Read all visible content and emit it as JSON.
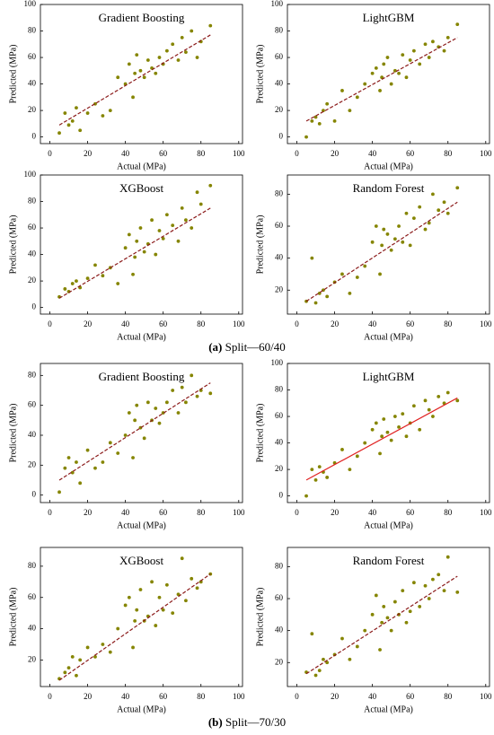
{
  "chart_data": [
    {
      "type": "scatter",
      "title": "Gradient Boosting",
      "x_label": "Actual (MPa)",
      "y_label": "Predicted (MPa)",
      "xlim": [
        -5,
        102
      ],
      "ylim": [
        -5,
        100
      ],
      "xticks": [
        0,
        20,
        40,
        60,
        80,
        100
      ],
      "yticks": [
        0,
        20,
        40,
        60,
        80,
        100
      ],
      "series": [
        {
          "color": "#858500",
          "x": [
            5,
            8,
            10,
            12,
            14,
            16,
            20,
            24,
            28,
            32,
            36,
            40,
            42,
            44,
            45,
            46,
            48,
            50,
            52,
            54,
            56,
            58,
            60,
            62,
            65,
            68,
            70,
            72,
            75,
            78,
            80,
            85
          ],
          "values": [
            3,
            18,
            9,
            12,
            22,
            5,
            18,
            25,
            16,
            20,
            45,
            40,
            55,
            30,
            48,
            62,
            50,
            45,
            58,
            52,
            48,
            60,
            55,
            65,
            70,
            58,
            75,
            64,
            80,
            60,
            72,
            84
          ]
        }
      ],
      "fit_line": {
        "color": "#8b1a1a",
        "style": "dashed",
        "x": [
          5,
          85
        ],
        "values": [
          9,
          77
        ]
      }
    },
    {
      "type": "scatter",
      "title": "LightGBM",
      "x_label": "Actual (MPa)",
      "y_label": "Predicted (MPa)",
      "xlim": [
        -5,
        102
      ],
      "ylim": [
        -5,
        100
      ],
      "xticks": [
        0,
        20,
        40,
        60,
        80,
        100
      ],
      "yticks": [
        0,
        20,
        40,
        60,
        80,
        100
      ],
      "series": [
        {
          "color": "#858500",
          "x": [
            5,
            8,
            10,
            12,
            14,
            16,
            20,
            24,
            28,
            32,
            36,
            40,
            42,
            44,
            45,
            46,
            48,
            50,
            52,
            54,
            56,
            58,
            60,
            62,
            65,
            68,
            70,
            72,
            75,
            78,
            80,
            85
          ],
          "values": [
            0,
            12,
            15,
            10,
            20,
            25,
            12,
            35,
            20,
            30,
            40,
            48,
            52,
            35,
            45,
            55,
            60,
            40,
            50,
            48,
            62,
            45,
            58,
            65,
            55,
            70,
            60,
            72,
            68,
            65,
            75,
            85
          ]
        }
      ],
      "fit_line": {
        "color": "#8b1a1a",
        "style": "dashed",
        "x": [
          5,
          85
        ],
        "values": [
          12,
          75
        ]
      }
    },
    {
      "type": "scatter",
      "title": "XGBoost",
      "x_label": "Actual (MPa)",
      "y_label": "Predicted (MPa)",
      "xlim": [
        -5,
        102
      ],
      "ylim": [
        -5,
        100
      ],
      "xticks": [
        0,
        20,
        40,
        60,
        80,
        100
      ],
      "yticks": [
        0,
        20,
        40,
        60,
        80,
        100
      ],
      "series": [
        {
          "color": "#858500",
          "x": [
            5,
            8,
            10,
            12,
            14,
            16,
            20,
            24,
            28,
            32,
            36,
            40,
            42,
            44,
            45,
            46,
            48,
            50,
            52,
            54,
            56,
            58,
            60,
            62,
            65,
            68,
            70,
            72,
            75,
            78,
            80,
            85
          ],
          "values": [
            8,
            14,
            12,
            18,
            20,
            15,
            22,
            32,
            24,
            30,
            18,
            45,
            55,
            25,
            38,
            50,
            60,
            42,
            48,
            66,
            40,
            58,
            52,
            70,
            62,
            50,
            75,
            66,
            60,
            87,
            78,
            92
          ]
        }
      ],
      "fit_line": {
        "color": "#8b1a1a",
        "style": "dashed",
        "x": [
          5,
          85
        ],
        "values": [
          7,
          75
        ]
      }
    },
    {
      "type": "scatter",
      "title": "Random Forest",
      "x_label": "Actual (MPa)",
      "y_label": "Predicted (MPa)",
      "xlim": [
        -5,
        102
      ],
      "ylim": [
        5,
        92
      ],
      "xticks": [
        0,
        20,
        40,
        60,
        80,
        100
      ],
      "yticks": [
        20,
        40,
        60,
        80
      ],
      "series": [
        {
          "color": "#858500",
          "x": [
            5,
            8,
            10,
            12,
            14,
            16,
            20,
            24,
            28,
            32,
            36,
            40,
            42,
            44,
            45,
            46,
            48,
            50,
            52,
            54,
            56,
            58,
            60,
            62,
            65,
            68,
            70,
            72,
            75,
            78,
            80,
            85
          ],
          "values": [
            13,
            40,
            12,
            18,
            20,
            16,
            25,
            30,
            18,
            28,
            35,
            50,
            60,
            30,
            48,
            58,
            55,
            45,
            52,
            60,
            50,
            68,
            48,
            65,
            72,
            58,
            62,
            80,
            70,
            75,
            68,
            84
          ]
        }
      ],
      "fit_line": {
        "color": "#8b1a1a",
        "style": "dashed",
        "x": [
          5,
          85
        ],
        "values": [
          13,
          75
        ]
      }
    },
    {
      "type": "scatter",
      "title": "Gradient Boosting",
      "x_label": "Actual (MPa)",
      "y_label": "Predicted (MPa)",
      "xlim": [
        -5,
        102
      ],
      "ylim": [
        -5,
        88
      ],
      "xticks": [
        0,
        20,
        40,
        60,
        80,
        100
      ],
      "yticks": [
        0,
        20,
        40,
        60,
        80
      ],
      "series": [
        {
          "color": "#858500",
          "x": [
            5,
            8,
            10,
            12,
            14,
            16,
            20,
            24,
            28,
            32,
            36,
            40,
            42,
            44,
            45,
            46,
            48,
            50,
            52,
            54,
            56,
            58,
            60,
            62,
            65,
            68,
            70,
            72,
            75,
            78,
            80,
            85
          ],
          "values": [
            2,
            18,
            25,
            15,
            22,
            8,
            30,
            18,
            22,
            35,
            28,
            40,
            55,
            25,
            50,
            60,
            45,
            38,
            62,
            50,
            58,
            48,
            55,
            62,
            70,
            55,
            72,
            62,
            80,
            66,
            70,
            68
          ]
        }
      ],
      "fit_line": {
        "color": "#8b1a1a",
        "style": "dashed",
        "x": [
          5,
          85
        ],
        "values": [
          10,
          75
        ]
      }
    },
    {
      "type": "scatter",
      "title": "LightGBM",
      "x_label": "Actual (MPa)",
      "y_label": "Predicted (MPa)",
      "xlim": [
        -5,
        102
      ],
      "ylim": [
        -5,
        100
      ],
      "xticks": [
        0,
        20,
        40,
        60,
        80,
        100
      ],
      "yticks": [
        0,
        20,
        40,
        60,
        80,
        100
      ],
      "series": [
        {
          "color": "#858500",
          "x": [
            5,
            8,
            10,
            12,
            14,
            16,
            20,
            24,
            28,
            32,
            36,
            40,
            42,
            44,
            45,
            46,
            48,
            50,
            52,
            54,
            56,
            58,
            60,
            62,
            65,
            68,
            70,
            72,
            75,
            78,
            80,
            85
          ],
          "values": [
            0,
            20,
            12,
            22,
            18,
            14,
            25,
            35,
            20,
            30,
            40,
            50,
            55,
            32,
            45,
            58,
            48,
            42,
            60,
            52,
            62,
            45,
            55,
            68,
            50,
            72,
            65,
            60,
            75,
            70,
            78,
            72
          ]
        }
      ],
      "fit_line": {
        "color": "#e02020",
        "style": "solid",
        "x": [
          5,
          85
        ],
        "values": [
          12,
          74
        ]
      }
    },
    {
      "type": "scatter",
      "title": "XGBoost",
      "x_label": "Actual (MPa)",
      "y_label": "Predicted (MPa)",
      "xlim": [
        -5,
        102
      ],
      "ylim": [
        3,
        92
      ],
      "xticks": [
        0,
        20,
        40,
        60,
        80,
        100
      ],
      "yticks": [
        20,
        40,
        60,
        80
      ],
      "series": [
        {
          "color": "#858500",
          "x": [
            5,
            8,
            10,
            12,
            14,
            16,
            20,
            24,
            28,
            32,
            36,
            40,
            42,
            44,
            45,
            46,
            48,
            50,
            52,
            54,
            56,
            58,
            60,
            62,
            65,
            68,
            70,
            72,
            75,
            78,
            80,
            85
          ],
          "values": [
            8,
            12,
            15,
            22,
            10,
            20,
            28,
            22,
            30,
            25,
            40,
            55,
            60,
            28,
            45,
            52,
            65,
            45,
            48,
            70,
            42,
            60,
            52,
            68,
            50,
            62,
            85,
            58,
            72,
            66,
            70,
            75
          ]
        }
      ],
      "fit_line": {
        "color": "#8b1a1a",
        "style": "dashed",
        "x": [
          5,
          85
        ],
        "values": [
          7,
          75
        ]
      }
    },
    {
      "type": "scatter",
      "title": "Random Forest",
      "x_label": "Actual (MPa)",
      "y_label": "Predicted (MPa)",
      "xlim": [
        -5,
        102
      ],
      "ylim": [
        5,
        92
      ],
      "xticks": [
        0,
        20,
        40,
        60,
        80,
        100
      ],
      "yticks": [
        20,
        40,
        60,
        80
      ],
      "series": [
        {
          "color": "#858500",
          "x": [
            5,
            8,
            10,
            12,
            14,
            16,
            20,
            24,
            28,
            32,
            36,
            40,
            42,
            44,
            45,
            46,
            48,
            50,
            52,
            54,
            56,
            58,
            60,
            62,
            65,
            68,
            70,
            72,
            75,
            78,
            80,
            85
          ],
          "values": [
            14,
            38,
            12,
            15,
            22,
            20,
            25,
            35,
            22,
            30,
            40,
            50,
            62,
            28,
            45,
            55,
            48,
            40,
            58,
            50,
            65,
            45,
            52,
            70,
            55,
            68,
            60,
            72,
            75,
            65,
            86,
            64
          ]
        }
      ],
      "fit_line": {
        "color": "#8b1a1a",
        "style": "dashed",
        "x": [
          5,
          85
        ],
        "values": [
          13,
          74
        ]
      }
    }
  ],
  "figure_captions": [
    {
      "label": "(a)",
      "text": "Split—60/40"
    },
    {
      "label": "(b)",
      "text": "Split—70/30"
    }
  ]
}
